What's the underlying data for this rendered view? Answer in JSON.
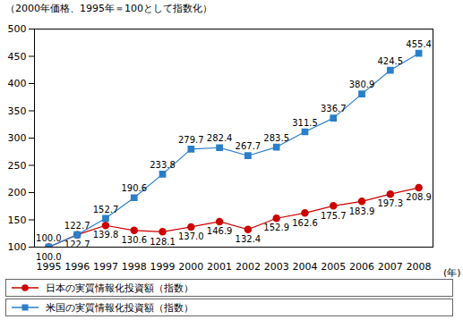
{
  "chart_data": {
    "type": "line",
    "subtitle": "（2000年価格、1995年＝100として指数化）",
    "x_label": "(年)",
    "x": [
      1995,
      1996,
      1997,
      1998,
      1999,
      2000,
      2001,
      2002,
      2003,
      2004,
      2005,
      2006,
      2007,
      2008
    ],
    "xlim": [
      1994.5,
      2008.5
    ],
    "xticks": [
      1995,
      1996,
      1997,
      1998,
      1999,
      2000,
      2001,
      2002,
      2003,
      2004,
      2005,
      2006,
      2007,
      2008
    ],
    "ylim": [
      100,
      500
    ],
    "yticks": [
      100,
      150,
      200,
      250,
      300,
      350,
      400,
      450,
      500
    ],
    "grid": false,
    "data_labels": true,
    "legend": "bottom",
    "series": [
      {
        "name": "日本の実質情報化投資額（指数）",
        "color": "#cc0000",
        "marker": "circle",
        "line_style": "solid",
        "values": [
          100.0,
          122.7,
          139.8,
          130.6,
          128.1,
          137.0,
          146.9,
          132.4,
          152.9,
          162.6,
          175.7,
          183.9,
          197.3,
          208.9
        ],
        "value_labels": [
          "100.0",
          "122.7",
          "139.8",
          "130.6",
          "128.1",
          "137.0",
          "146.9",
          "132.4",
          "152.9",
          "162.6",
          "175.7",
          "183.9",
          "197.3",
          "208.9"
        ]
      },
      {
        "name": "米国の実質情報化投資額（指数）",
        "color": "#2a7fc9",
        "marker": "square",
        "line_style": "solid",
        "values": [
          100.0,
          122.7,
          152.7,
          190.6,
          233.8,
          279.7,
          282.4,
          267.7,
          283.5,
          311.5,
          336.7,
          380.9,
          424.5,
          455.4
        ],
        "value_labels": [
          "100.0",
          "122.7",
          "152.7",
          "190.6",
          "233.8",
          "279.7",
          "282.4",
          "267.7",
          "283.5",
          "311.5",
          "336.7",
          "380.9",
          "424.5",
          "455.4"
        ]
      }
    ]
  }
}
